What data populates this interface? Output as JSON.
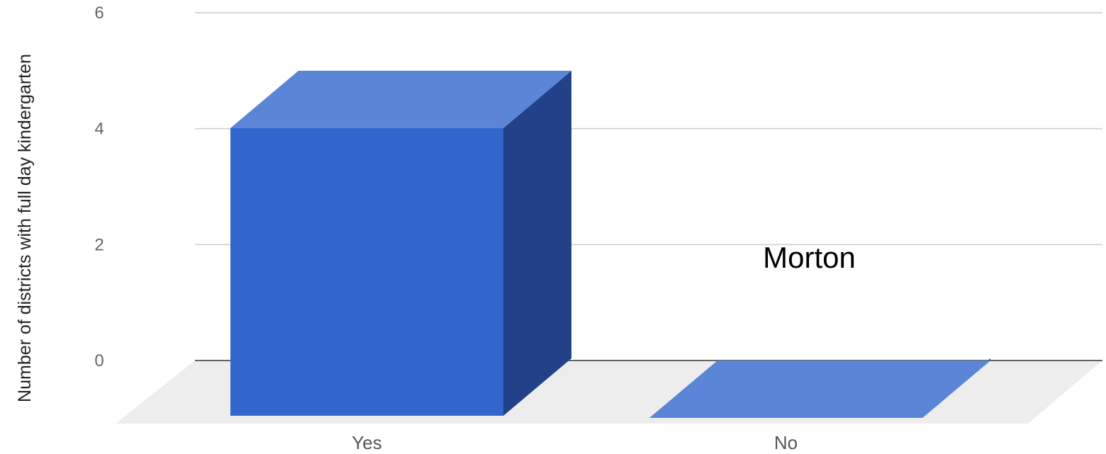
{
  "chart_data": {
    "type": "bar",
    "style": "3d-column",
    "categories": [
      "Yes",
      "No"
    ],
    "values": [
      5,
      0
    ],
    "ylabel": "Number of districts with full day kindergarten",
    "ylim": [
      0,
      6
    ],
    "yticks": [
      "0",
      "2",
      "4",
      "6"
    ],
    "grid": true,
    "legend": "none",
    "annotations": [
      {
        "text": "Morton",
        "category": "No"
      }
    ],
    "colors": {
      "bar_front": "#3266CC",
      "bar_top": "#5B85D6",
      "bar_side": "#224188",
      "floor": "#EDEDED",
      "gridline": "#CCCCCC",
      "baseline": "#333333"
    }
  }
}
